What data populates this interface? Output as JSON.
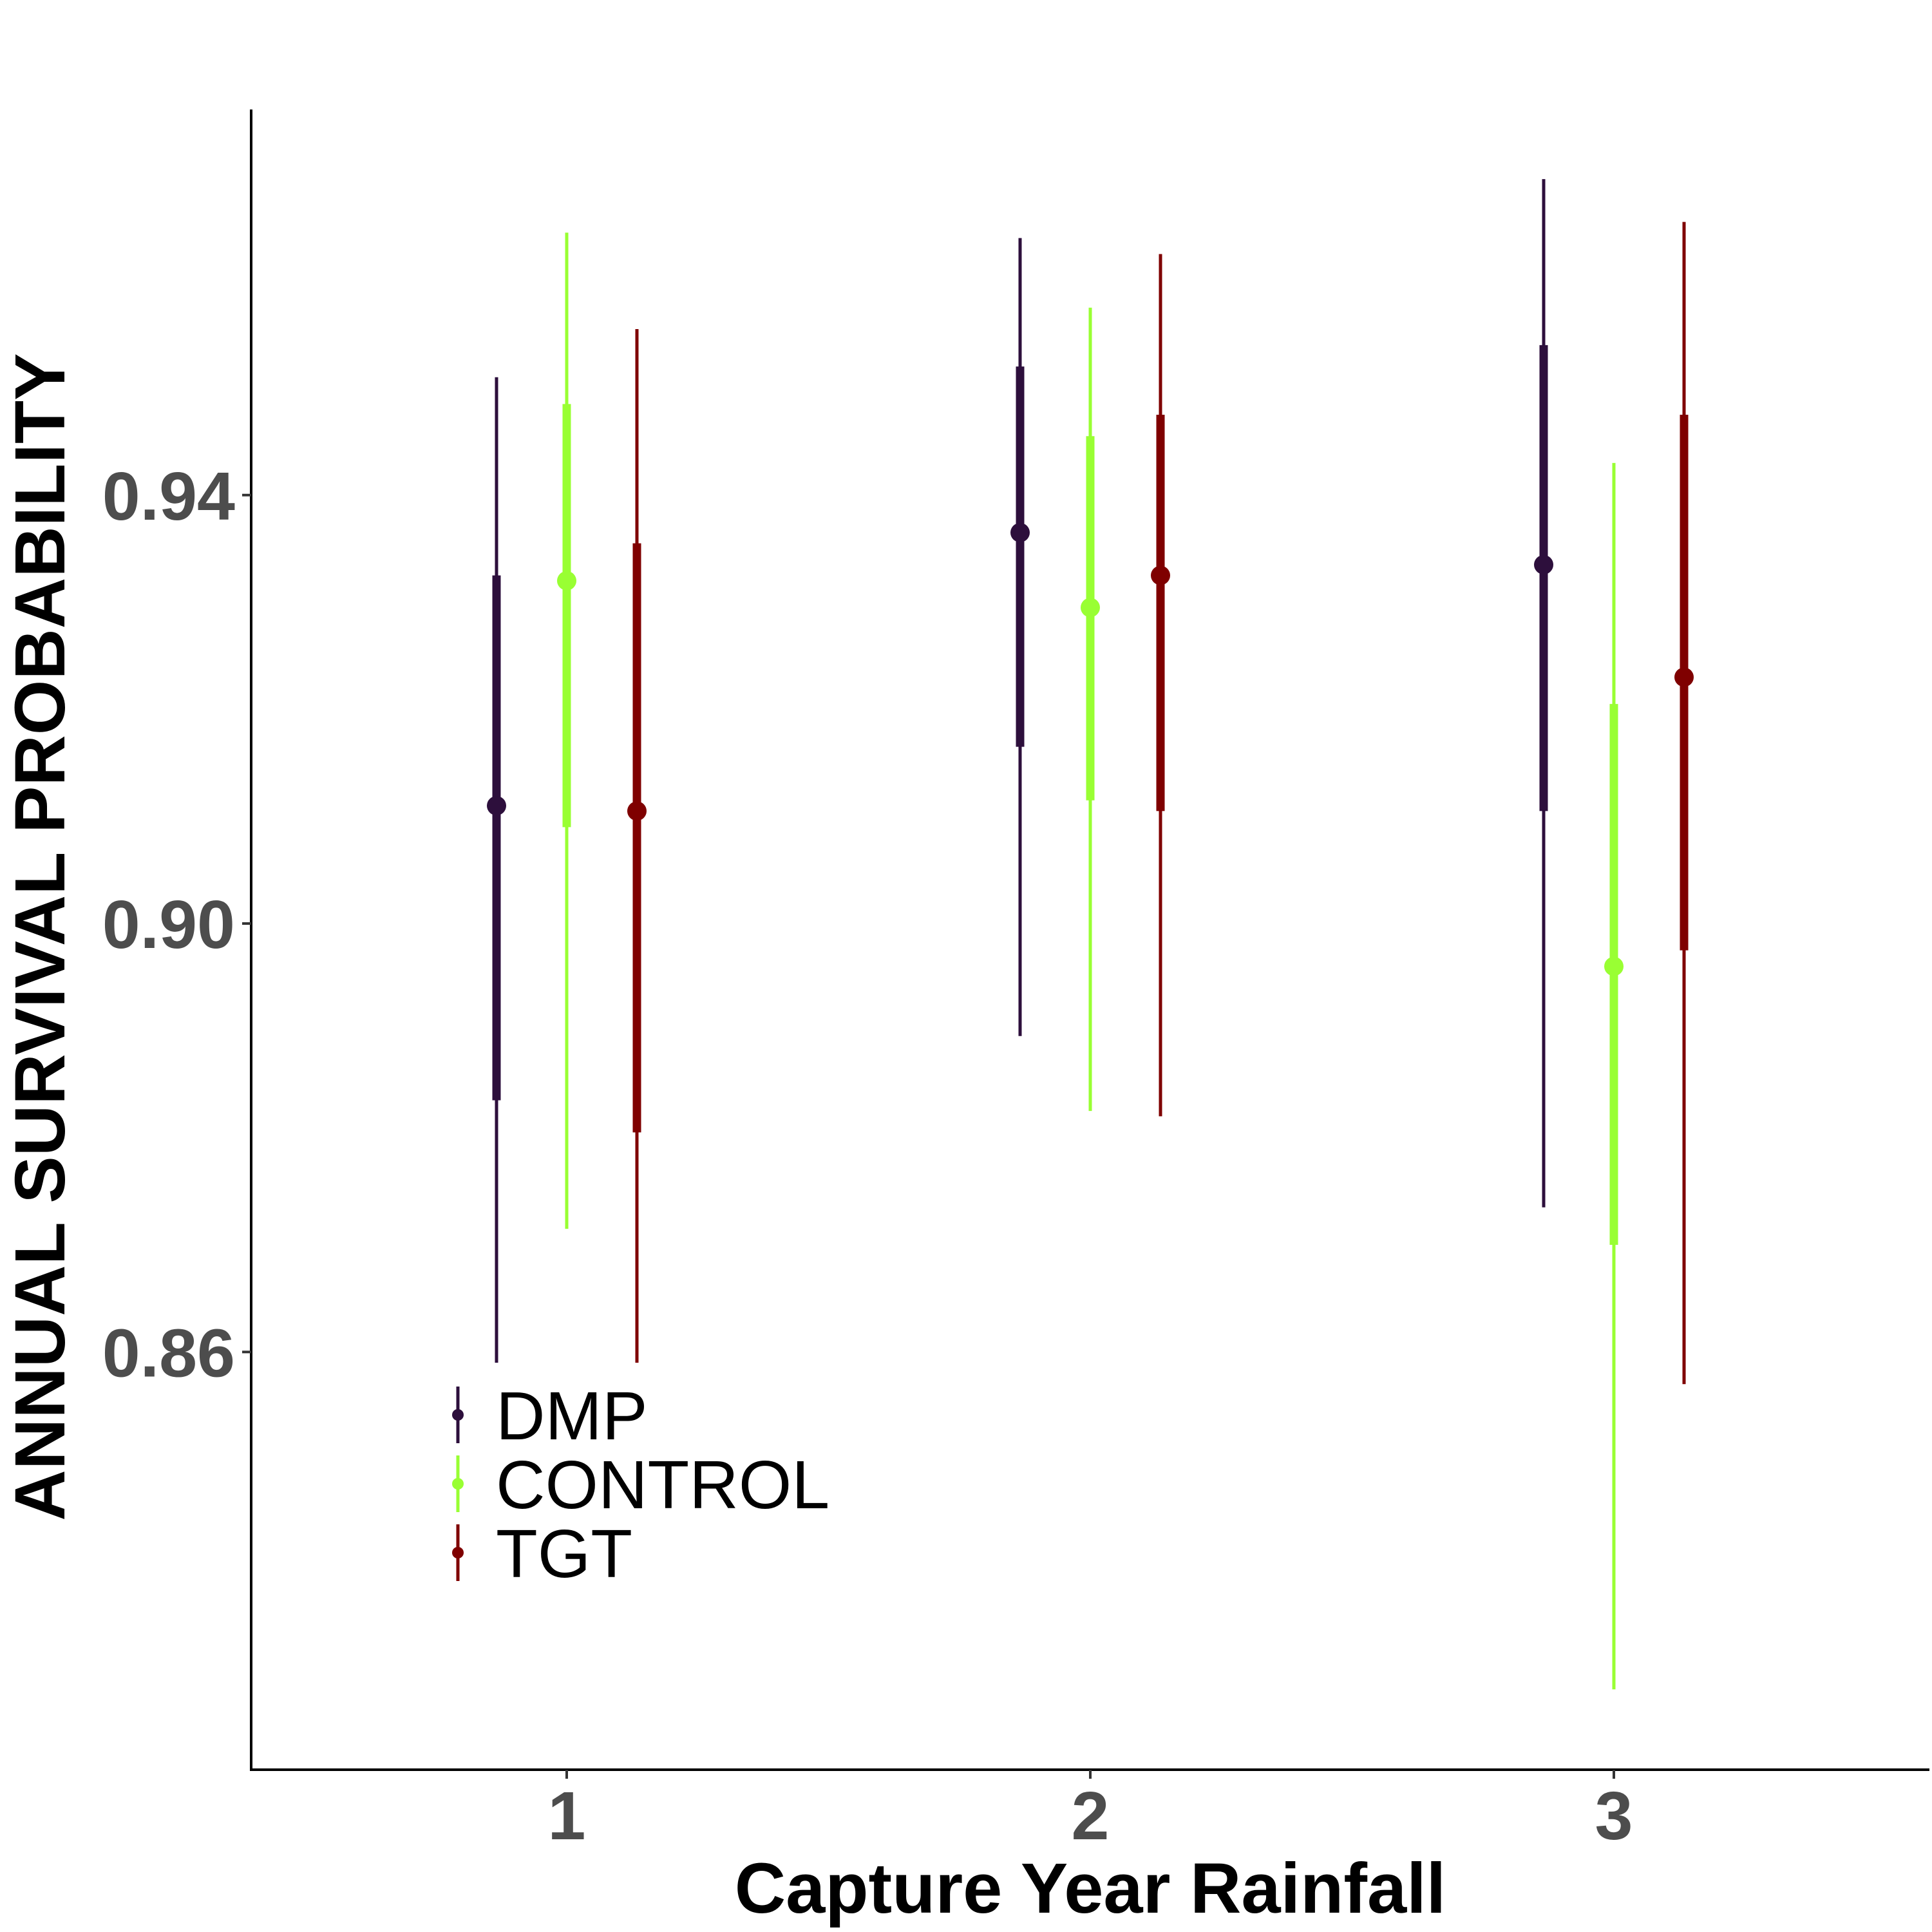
{
  "chart_data": {
    "type": "pointrange",
    "xlabel": "Capture Year Rainfall",
    "ylabel": "ANNUAL SURVIVAL PROBABILITY",
    "categories": [
      "1",
      "2",
      "3"
    ],
    "yticks": [
      "0.86",
      "0.90",
      "0.94"
    ],
    "ylim": [
      0.821,
      0.976
    ],
    "grid": false,
    "legend_position": "bottom-left",
    "series": [
      {
        "name": "DMP",
        "color": "#2d0f3c",
        "points": [
          {
            "x": "1",
            "mean": 0.911,
            "inner_low": 0.8835,
            "inner_high": 0.9325,
            "outer_low": 0.859,
            "outer_high": 0.951
          },
          {
            "x": "2",
            "mean": 0.9365,
            "inner_low": 0.9165,
            "inner_high": 0.952,
            "outer_low": 0.8895,
            "outer_high": 0.964
          },
          {
            "x": "3",
            "mean": 0.9335,
            "inner_low": 0.9105,
            "inner_high": 0.954,
            "outer_low": 0.8735,
            "outer_high": 0.9695
          }
        ]
      },
      {
        "name": "CONTROL",
        "color": "#99ff33",
        "points": [
          {
            "x": "1",
            "mean": 0.932,
            "inner_low": 0.909,
            "inner_high": 0.9485,
            "outer_low": 0.8715,
            "outer_high": 0.9645
          },
          {
            "x": "2",
            "mean": 0.9295,
            "inner_low": 0.9115,
            "inner_high": 0.9455,
            "outer_low": 0.8825,
            "outer_high": 0.9575
          },
          {
            "x": "3",
            "mean": 0.896,
            "inner_low": 0.87,
            "inner_high": 0.9205,
            "outer_low": 0.8285,
            "outer_high": 0.943
          }
        ]
      },
      {
        "name": "TGT",
        "color": "#7f0000",
        "points": [
          {
            "x": "1",
            "mean": 0.9105,
            "inner_low": 0.8805,
            "inner_high": 0.9355,
            "outer_low": 0.859,
            "outer_high": 0.9555
          },
          {
            "x": "2",
            "mean": 0.9325,
            "inner_low": 0.9105,
            "inner_high": 0.9475,
            "outer_low": 0.882,
            "outer_high": 0.9625
          },
          {
            "x": "3",
            "mean": 0.923,
            "inner_low": 0.8975,
            "inner_high": 0.9475,
            "outer_low": 0.857,
            "outer_high": 0.9655
          }
        ]
      }
    ]
  }
}
